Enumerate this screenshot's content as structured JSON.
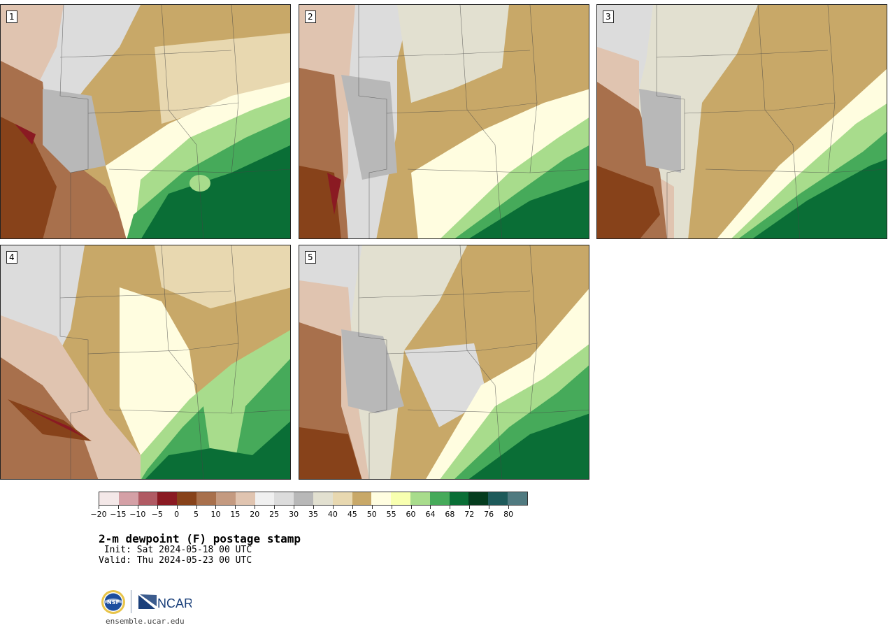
{
  "members": [
    {
      "label": "1"
    },
    {
      "label": "2"
    },
    {
      "label": "3"
    },
    {
      "label": "4"
    },
    {
      "label": "5"
    }
  ],
  "colorbar": {
    "colors": [
      "#f4e8e8",
      "#d4a0a6",
      "#b05a63",
      "#8a1a22",
      "#87421a",
      "#a8704c",
      "#c49a80",
      "#e0c4b0",
      "#f0f0f0",
      "#dcdcdc",
      "#b8b8b8",
      "#e2e0d0",
      "#e8d8b0",
      "#c8a868",
      "#fffde0",
      "#f8ffb0",
      "#a8dc8c",
      "#46aa5a",
      "#0a6e36",
      "#053c1e",
      "#1e5a5a",
      "#507a80"
    ],
    "tick_labels": [
      "−20",
      "−15",
      "−10",
      "−5",
      "0",
      "5",
      "10",
      "15",
      "20",
      "25",
      "30",
      "35",
      "40",
      "45",
      "50",
      "55",
      "60",
      "64",
      "68",
      "72",
      "76",
      "80"
    ]
  },
  "title": "2-m dewpoint (F) postage stamp",
  "init": " Init: Sat 2024-05-18 00 UTC",
  "valid": "Valid: Thu 2024-05-23 00 UTC",
  "logos": {
    "nsf_text": "NSF",
    "ncar_text": "NCAR",
    "ncar_color": "#1a3f7a",
    "nsf_color": "#1d4e9e"
  },
  "url": "ensemble.ucar.edu"
}
